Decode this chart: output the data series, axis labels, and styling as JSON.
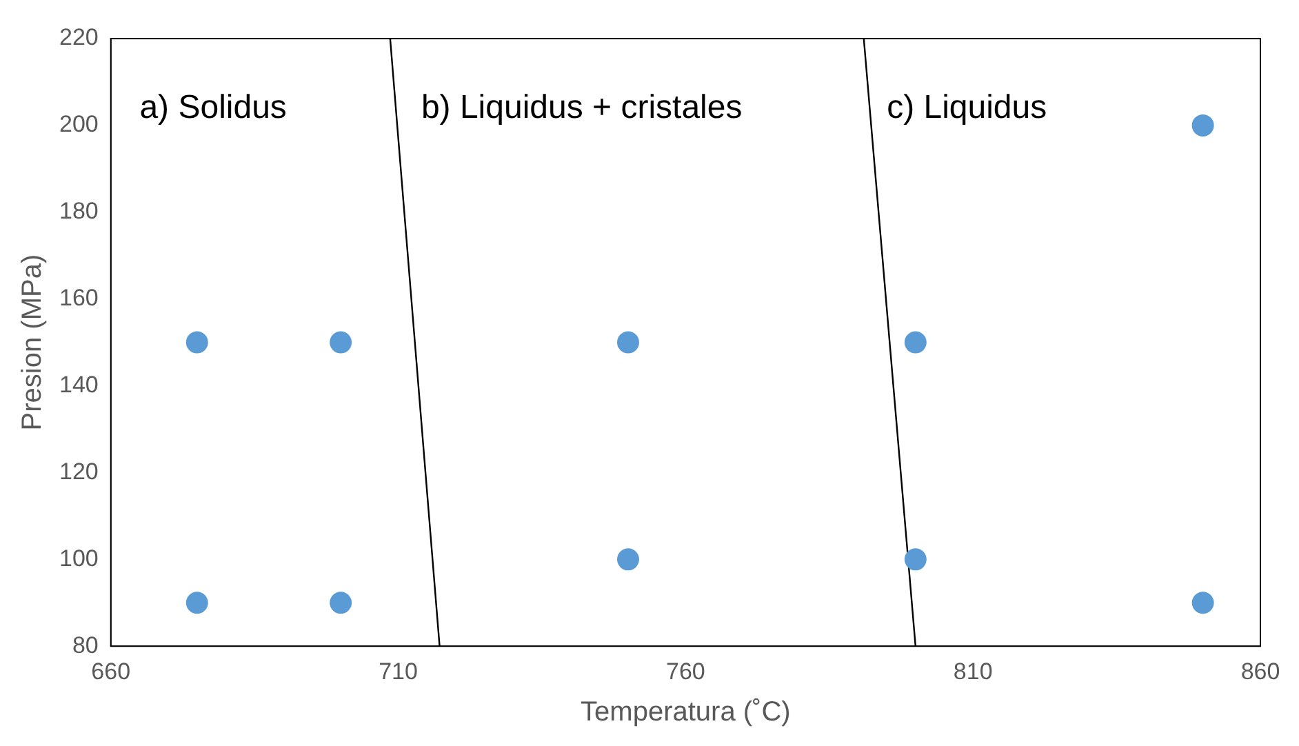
{
  "chart_data": {
    "type": "scatter",
    "xlabel": "Temperatura (˚C)",
    "ylabel": "Presion (MPa)",
    "xlim": [
      660,
      860
    ],
    "xticks": [
      660,
      710,
      760,
      810,
      860
    ],
    "ylim": [
      80,
      220
    ],
    "yticks": [
      80,
      100,
      120,
      140,
      160,
      180,
      200,
      220
    ],
    "grid": false,
    "legend": false,
    "series": [
      {
        "color": "#5b9bd5",
        "marker": "circle",
        "x": [
          675,
          700,
          675,
          700,
          750,
          750,
          800,
          800,
          850,
          850
        ],
        "values": [
          150,
          150,
          90,
          90,
          150,
          100,
          150,
          100,
          200,
          90
        ]
      },
      {
        "type": "line",
        "marker": "none",
        "color": "#000000",
        "x": [
          708.6,
          717.2
        ],
        "values": [
          220,
          80
        ]
      },
      {
        "type": "line",
        "marker": "none",
        "color": "#000000",
        "x": [
          791,
          800
        ],
        "values": [
          220,
          80
        ]
      }
    ],
    "annotations": [
      "a) Solidus",
      "b) Liquidus + cristales",
      "c) Liquidus"
    ]
  }
}
